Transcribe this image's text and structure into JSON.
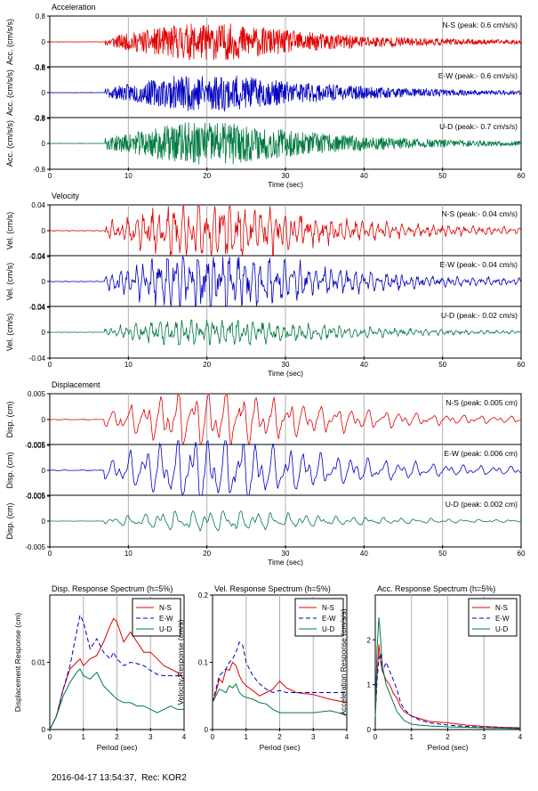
{
  "colors": {
    "ns": "#e00000",
    "ew": "#0000c0",
    "ud": "#007a40",
    "grid": "#b0b0b0",
    "frame": "#000000"
  },
  "footer": {
    "timestamp": "2016-04-17 13:54:37,",
    "record": "Rec: KOR2"
  },
  "time_groups": [
    {
      "title": "Acceleration",
      "ylabel": "Acc. (cm/s/s)",
      "xlabel": "Time (sec)",
      "xticks": [
        "0",
        "10",
        "20",
        "30",
        "40",
        "50",
        "60"
      ],
      "yticks": [
        "0.8",
        "0",
        "-0.8"
      ],
      "ylim": [
        -0.8,
        0.8
      ],
      "shape": "acc",
      "traces": [
        {
          "key": "ns",
          "label": "N-S (peak: 0.6 cm/s/s)",
          "peak": 0.6,
          "seed": 11
        },
        {
          "key": "ew",
          "label": "E-W (peak:- 0.6 cm/s/s)",
          "peak": 0.6,
          "seed": 23
        },
        {
          "key": "ud",
          "label": "U-D (peak:- 0.7 cm/s/s)",
          "peak": 0.7,
          "seed": 37
        }
      ]
    },
    {
      "title": "Velocity",
      "ylabel": "Vel. (cm/s)",
      "xlabel": "Time (sec)",
      "xticks": [
        "0",
        "10",
        "20",
        "30",
        "40",
        "50",
        "60"
      ],
      "yticks": [
        "0.04",
        "0",
        "-0.04"
      ],
      "ylim": [
        -0.04,
        0.04
      ],
      "shape": "vel",
      "traces": [
        {
          "key": "ns",
          "label": "N-S (peak:- 0.04 cm/s)",
          "peak": 0.04,
          "seed": 41
        },
        {
          "key": "ew",
          "label": "E-W (peak:- 0.04 cm/s)",
          "peak": 0.04,
          "seed": 53
        },
        {
          "key": "ud",
          "label": "U-D (peak:- 0.02 cm/s)",
          "peak": 0.02,
          "seed": 67
        }
      ]
    },
    {
      "title": "Displacement",
      "ylabel": "Disp. (cm)",
      "xlabel": "Time (sec)",
      "xticks": [
        "0",
        "10",
        "20",
        "30",
        "40",
        "50",
        "60"
      ],
      "yticks": [
        "0.005",
        "0",
        "-0.005"
      ],
      "ylim": [
        -0.005,
        0.005
      ],
      "shape": "disp",
      "traces": [
        {
          "key": "ns",
          "label": "N-S (peak: 0.005 cm)",
          "peak": 0.005,
          "seed": 71
        },
        {
          "key": "ew",
          "label": "E-W (peak: 0.006 cm)",
          "peak": 0.006,
          "seed": 83
        },
        {
          "key": "ud",
          "label": "U-D (peak: 0.002 cm)",
          "peak": 0.002,
          "seed": 97
        }
      ]
    }
  ],
  "chart_data": [
    {
      "type": "line",
      "title": "Disp. Response Spectrum (h=5%)",
      "xlabel": "Period (sec)",
      "ylabel": "Displacement Response (cm)",
      "xlim": [
        0,
        4
      ],
      "ylim": [
        0,
        0.02
      ],
      "xticks": [
        "0",
        "1",
        "2",
        "3",
        "4"
      ],
      "yticks": [
        "0",
        "0.01"
      ],
      "ytick_values": [
        0,
        0.01
      ],
      "legend": "top-right",
      "x": [
        0,
        0.2,
        0.4,
        0.6,
        0.8,
        0.9,
        1.0,
        1.2,
        1.4,
        1.6,
        1.8,
        1.9,
        2.0,
        2.2,
        2.4,
        2.6,
        2.8,
        3.0,
        3.2,
        3.4,
        3.6,
        3.8,
        4.0
      ],
      "series": [
        {
          "name": "N-S",
          "key": "ns",
          "dash": false,
          "values": [
            0,
            0.002,
            0.006,
            0.009,
            0.01,
            0.0105,
            0.0095,
            0.0105,
            0.011,
            0.013,
            0.0155,
            0.0165,
            0.016,
            0.013,
            0.0145,
            0.013,
            0.0115,
            0.0115,
            0.0105,
            0.0095,
            0.009,
            0.0085,
            0.0075
          ]
        },
        {
          "name": "E-W",
          "key": "ew",
          "dash": true,
          "values": [
            0,
            0.002,
            0.006,
            0.0095,
            0.0145,
            0.017,
            0.016,
            0.012,
            0.0135,
            0.0115,
            0.0105,
            0.0115,
            0.0105,
            0.0095,
            0.01,
            0.0098,
            0.0095,
            0.0088,
            0.0082,
            0.008,
            0.008,
            0.008,
            0.0075
          ]
        },
        {
          "name": "U-D",
          "key": "ud",
          "dash": false,
          "values": [
            0,
            0.002,
            0.005,
            0.007,
            0.0085,
            0.009,
            0.008,
            0.0075,
            0.0085,
            0.0065,
            0.0055,
            0.005,
            0.0045,
            0.004,
            0.004,
            0.0035,
            0.0035,
            0.003,
            0.0025,
            0.003,
            0.0035,
            0.003,
            0.003
          ]
        }
      ]
    },
    {
      "type": "line",
      "title": "Vel. Response Spectrum (h=5%)",
      "xlabel": "Period (sec)",
      "ylabel": "Velocity Response (cm/s)",
      "xlim": [
        0,
        4
      ],
      "ylim": [
        0,
        0.2
      ],
      "xticks": [
        "0",
        "1",
        "2",
        "3",
        "4"
      ],
      "yticks": [
        "0",
        "0.1",
        "0.2"
      ],
      "ytick_values": [
        0,
        0.1,
        0.2
      ],
      "legend": "top-right",
      "x": [
        0,
        0.1,
        0.2,
        0.3,
        0.4,
        0.5,
        0.6,
        0.7,
        0.8,
        0.9,
        1.0,
        1.2,
        1.4,
        1.6,
        1.8,
        2.0,
        2.2,
        2.5,
        3.0,
        3.5,
        4.0
      ],
      "series": [
        {
          "name": "N-S",
          "key": "ns",
          "dash": false,
          "values": [
            0.04,
            0.055,
            0.075,
            0.07,
            0.09,
            0.088,
            0.1,
            0.095,
            0.08,
            0.07,
            0.065,
            0.058,
            0.05,
            0.055,
            0.06,
            0.072,
            0.062,
            0.055,
            0.052,
            0.045,
            0.04
          ]
        },
        {
          "name": "E-W",
          "key": "ew",
          "dash": true,
          "values": [
            0.04,
            0.06,
            0.08,
            0.085,
            0.09,
            0.1,
            0.105,
            0.115,
            0.13,
            0.125,
            0.1,
            0.08,
            0.068,
            0.06,
            0.055,
            0.058,
            0.055,
            0.055,
            0.055,
            0.055,
            0.055
          ]
        },
        {
          "name": "U-D",
          "key": "ud",
          "dash": false,
          "values": [
            0.04,
            0.05,
            0.06,
            0.058,
            0.055,
            0.065,
            0.062,
            0.068,
            0.055,
            0.05,
            0.048,
            0.045,
            0.04,
            0.038,
            0.03,
            0.025,
            0.025,
            0.025,
            0.025,
            0.028,
            0.022
          ]
        }
      ]
    },
    {
      "type": "line",
      "title": "Acc. Response Spectrum (h=5%)",
      "xlabel": "Period (sec)",
      "ylabel": "Acceleration Response (cm/s/s)",
      "xlim": [
        0,
        4
      ],
      "ylim": [
        0,
        3
      ],
      "xticks": [
        "0",
        "1",
        "2",
        "3",
        "4"
      ],
      "yticks": [
        "0",
        "1",
        "2"
      ],
      "ytick_values": [
        0,
        1,
        2
      ],
      "legend": "top-right",
      "x": [
        0,
        0.05,
        0.1,
        0.15,
        0.2,
        0.3,
        0.4,
        0.5,
        0.6,
        0.7,
        0.8,
        1.0,
        1.2,
        1.5,
        2.0,
        2.5,
        3.0,
        3.5,
        4.0
      ],
      "series": [
        {
          "name": "N-S",
          "key": "ns",
          "dash": false,
          "values": [
            0.3,
            1.2,
            1.9,
            1.5,
            1.3,
            1.1,
            1.0,
            0.8,
            0.7,
            0.5,
            0.4,
            0.3,
            0.25,
            0.18,
            0.15,
            0.1,
            0.07,
            0.05,
            0.04
          ]
        },
        {
          "name": "E-W",
          "key": "ew",
          "dash": true,
          "values": [
            0.3,
            1.1,
            1.6,
            1.7,
            1.3,
            1.5,
            1.3,
            1.1,
            0.9,
            0.6,
            0.45,
            0.3,
            0.22,
            0.15,
            0.1,
            0.07,
            0.05,
            0.04,
            0.03
          ]
        },
        {
          "name": "U-D",
          "key": "ud",
          "dash": false,
          "values": [
            0.3,
            1.8,
            2.5,
            2.0,
            1.4,
            1.0,
            0.8,
            0.6,
            0.4,
            0.3,
            0.2,
            0.12,
            0.1,
            0.08,
            0.06,
            0.05,
            0.04,
            0.03,
            0.02
          ]
        }
      ]
    }
  ]
}
